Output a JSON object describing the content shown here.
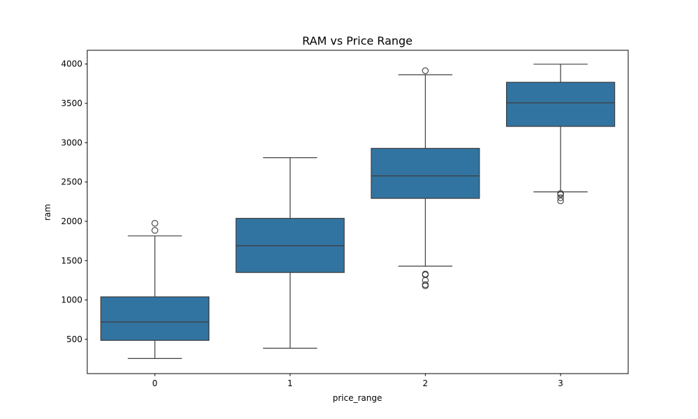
{
  "chart_data": {
    "type": "box",
    "title": "RAM vs Price Range",
    "xlabel": "price_range",
    "ylabel": "ram",
    "categories": [
      "0",
      "1",
      "2",
      "3"
    ],
    "ylim": [
      64,
      4175
    ],
    "yticks": [
      500,
      1000,
      1500,
      2000,
      2500,
      3000,
      3500,
      4000
    ],
    "grid": false,
    "color": "#3274a1",
    "line_color": "#3d3d3d",
    "boxes": [
      {
        "category": "0",
        "whisker_low": 256,
        "q1": 487,
        "median": 720,
        "q3": 1040,
        "whisker_high": 1815,
        "outliers": [
          1885,
          1975
        ]
      },
      {
        "category": "1",
        "whisker_low": 387,
        "q1": 1350,
        "median": 1690,
        "q3": 2038,
        "whisker_high": 2810,
        "outliers": []
      },
      {
        "category": "2",
        "whisker_low": 1430,
        "q1": 2292,
        "median": 2578,
        "q3": 2928,
        "whisker_high": 3864,
        "outliers": [
          3915,
          1330,
          1320,
          1250,
          1195,
          1180
        ]
      },
      {
        "category": "3",
        "whisker_low": 2375,
        "q1": 3207,
        "median": 3507,
        "q3": 3768,
        "whisker_high": 3998,
        "outliers": [
          2355,
          2340,
          2300,
          2260
        ]
      }
    ]
  }
}
